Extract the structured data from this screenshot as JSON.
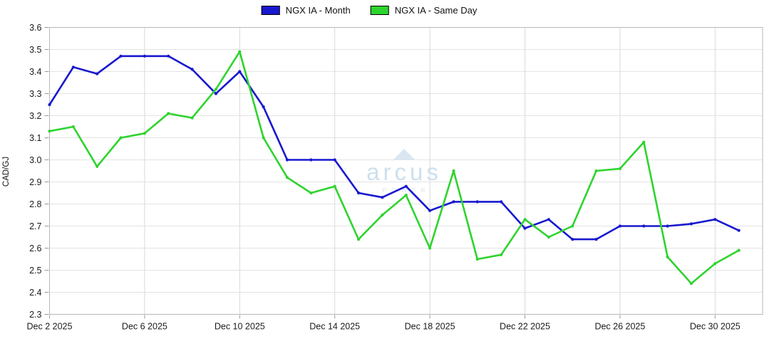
{
  "watermark": {
    "brand": "arcus",
    "sub": "POWER"
  },
  "colors": {
    "plot_border": "#b8b8b8",
    "grid_h": "#e4e4e4",
    "grid_v": "#d9d9d9",
    "tick": "#9a9a9a",
    "text": "#1a1a1a",
    "series_month": "#1818cf",
    "series_same_day": "#2ed42e",
    "watermark": "#cde0ee"
  },
  "chart_data": {
    "type": "line",
    "title": "",
    "xlabel": "",
    "ylabel": "CAD/GJ",
    "ylim": [
      2.3,
      3.6
    ],
    "ytick_step": 0.1,
    "grid": true,
    "legend_position": "top-center",
    "categories": [
      "Dec 2 2025",
      "Dec 3 2025",
      "Dec 4 2025",
      "Dec 5 2025",
      "Dec 6 2025",
      "Dec 7 2025",
      "Dec 8 2025",
      "Dec 9 2025",
      "Dec 10 2025",
      "Dec 11 2025",
      "Dec 12 2025",
      "Dec 13 2025",
      "Dec 14 2025",
      "Dec 15 2025",
      "Dec 16 2025",
      "Dec 17 2025",
      "Dec 18 2025",
      "Dec 19 2025",
      "Dec 20 2025",
      "Dec 21 2025",
      "Dec 22 2025",
      "Dec 23 2025",
      "Dec 24 2025",
      "Dec 25 2025",
      "Dec 26 2025",
      "Dec 27 2025",
      "Dec 28 2025",
      "Dec 29 2025",
      "Dec 30 2025",
      "Dec 31 2025"
    ],
    "xtick_every": 4,
    "xtick_labels": [
      "Dec 2 2025",
      "Dec 6 2025",
      "Dec 10 2025",
      "Dec 14 2025",
      "Dec 18 2025",
      "Dec 22 2025",
      "Dec 26 2025",
      "Dec 30 2025"
    ],
    "series": [
      {
        "name": "NGX IA - Month",
        "color": "#1818cf",
        "values": [
          3.25,
          3.42,
          3.39,
          3.47,
          3.47,
          3.47,
          3.41,
          3.3,
          3.4,
          3.24,
          3.0,
          3.0,
          3.0,
          2.85,
          2.83,
          2.88,
          2.77,
          2.81,
          2.81,
          2.81,
          2.69,
          2.73,
          2.64,
          2.64,
          2.7,
          2.7,
          2.7,
          2.71,
          2.73,
          2.68
        ]
      },
      {
        "name": "NGX IA - Same Day",
        "color": "#2ed42e",
        "values": [
          3.13,
          3.15,
          2.97,
          3.1,
          3.12,
          3.21,
          3.19,
          3.32,
          3.49,
          3.1,
          2.92,
          2.85,
          2.88,
          2.64,
          2.75,
          2.84,
          2.6,
          2.95,
          2.55,
          2.57,
          2.73,
          2.65,
          2.7,
          2.95,
          2.96,
          3.08,
          2.56,
          2.44,
          2.53,
          2.59
        ]
      }
    ]
  }
}
